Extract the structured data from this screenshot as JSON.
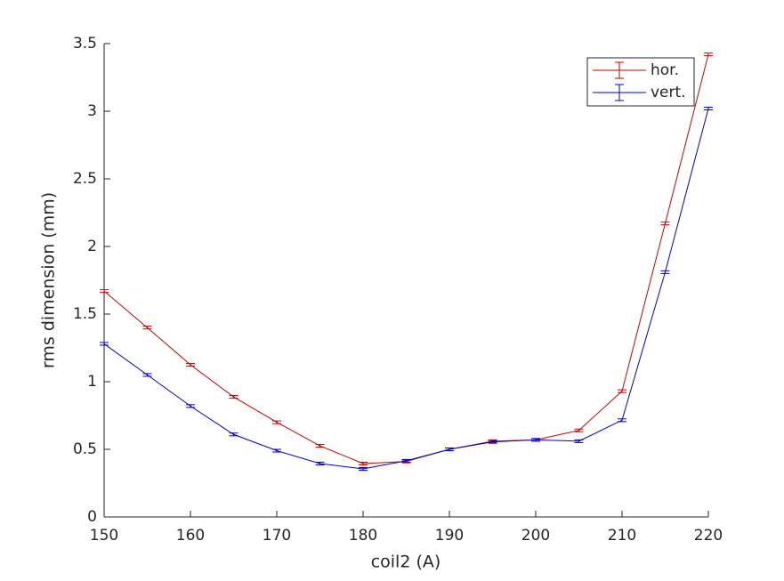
{
  "chart_data": {
    "type": "errorbar-line",
    "xlabel": "coil2 (A)",
    "ylabel": "rms dimension (mm)",
    "x": [
      150,
      155,
      160,
      165,
      170,
      175,
      180,
      185,
      190,
      195,
      200,
      205,
      210,
      215,
      220
    ],
    "series": [
      {
        "name": "hor.",
        "color": "#cc0000",
        "values": [
          1.67,
          1.4,
          1.125,
          0.888,
          0.7,
          0.526,
          0.395,
          0.41,
          0.5,
          0.56,
          0.57,
          0.64,
          0.93,
          2.17,
          3.42
        ],
        "errors": [
          0.01,
          0.01,
          0.01,
          0.01,
          0.01,
          0.01,
          0.01,
          0.01,
          0.01,
          0.01,
          0.01,
          0.01,
          0.01,
          0.01,
          0.01
        ]
      },
      {
        "name": "vert.",
        "color": "#0000cc",
        "values": [
          1.28,
          1.05,
          0.82,
          0.61,
          0.49,
          0.395,
          0.355,
          0.415,
          0.5,
          0.555,
          0.57,
          0.56,
          0.715,
          1.81,
          3.02
        ],
        "errors": [
          0.01,
          0.01,
          0.01,
          0.01,
          0.01,
          0.01,
          0.01,
          0.01,
          0.01,
          0.01,
          0.01,
          0.01,
          0.01,
          0.01,
          0.01
        ]
      }
    ],
    "xlim": [
      150,
      220
    ],
    "xticks": [
      150,
      160,
      170,
      180,
      190,
      200,
      210,
      220
    ],
    "ylim": [
      0,
      3.5
    ],
    "yticks": [
      0,
      0.5,
      1,
      1.5,
      2,
      2.5,
      3,
      3.5
    ],
    "legend": "northeast"
  }
}
